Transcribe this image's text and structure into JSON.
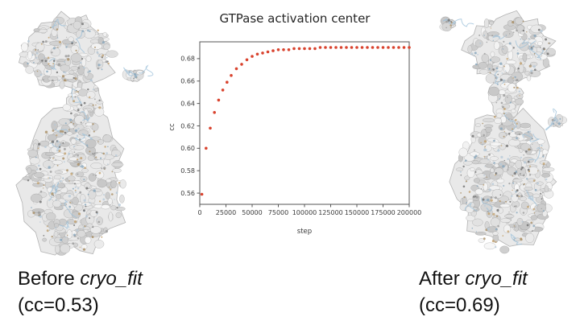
{
  "captions": {
    "before": {
      "prefix": "Before ",
      "name": "cryo_fit",
      "cc_line": "(cc=0.53)"
    },
    "after": {
      "prefix": "After ",
      "name": "cryo_fit",
      "cc_line": "(cc=0.69)"
    }
  },
  "chart_data": {
    "type": "scatter",
    "title": "GTPase activation center",
    "xlabel": "step",
    "ylabel": "cc",
    "xlim": [
      0,
      200000
    ],
    "ylim": [
      0.55,
      0.695
    ],
    "x_ticks": [
      0,
      25000,
      50000,
      75000,
      100000,
      125000,
      150000,
      175000,
      200000
    ],
    "y_ticks": [
      0.56,
      0.58,
      0.6,
      0.62,
      0.64,
      0.66,
      0.68
    ],
    "marker_color": "#d9432e",
    "legend": "none",
    "grid": false,
    "x": [
      2000,
      6000,
      10000,
      14000,
      18000,
      22000,
      26000,
      30000,
      35000,
      40000,
      45000,
      50000,
      55000,
      60000,
      65000,
      70000,
      75000,
      80000,
      85000,
      90000,
      95000,
      100000,
      105000,
      110000,
      115000,
      120000,
      125000,
      130000,
      135000,
      140000,
      145000,
      150000,
      155000,
      160000,
      165000,
      170000,
      175000,
      180000,
      185000,
      190000,
      195000,
      200000
    ],
    "y": [
      0.559,
      0.6,
      0.618,
      0.632,
      0.643,
      0.652,
      0.659,
      0.665,
      0.671,
      0.675,
      0.679,
      0.682,
      0.684,
      0.685,
      0.686,
      0.687,
      0.688,
      0.688,
      0.688,
      0.689,
      0.689,
      0.689,
      0.689,
      0.689,
      0.69,
      0.69,
      0.69,
      0.69,
      0.69,
      0.69,
      0.69,
      0.69,
      0.69,
      0.69,
      0.69,
      0.69,
      0.69,
      0.69,
      0.69,
      0.69,
      0.69,
      0.69
    ]
  }
}
